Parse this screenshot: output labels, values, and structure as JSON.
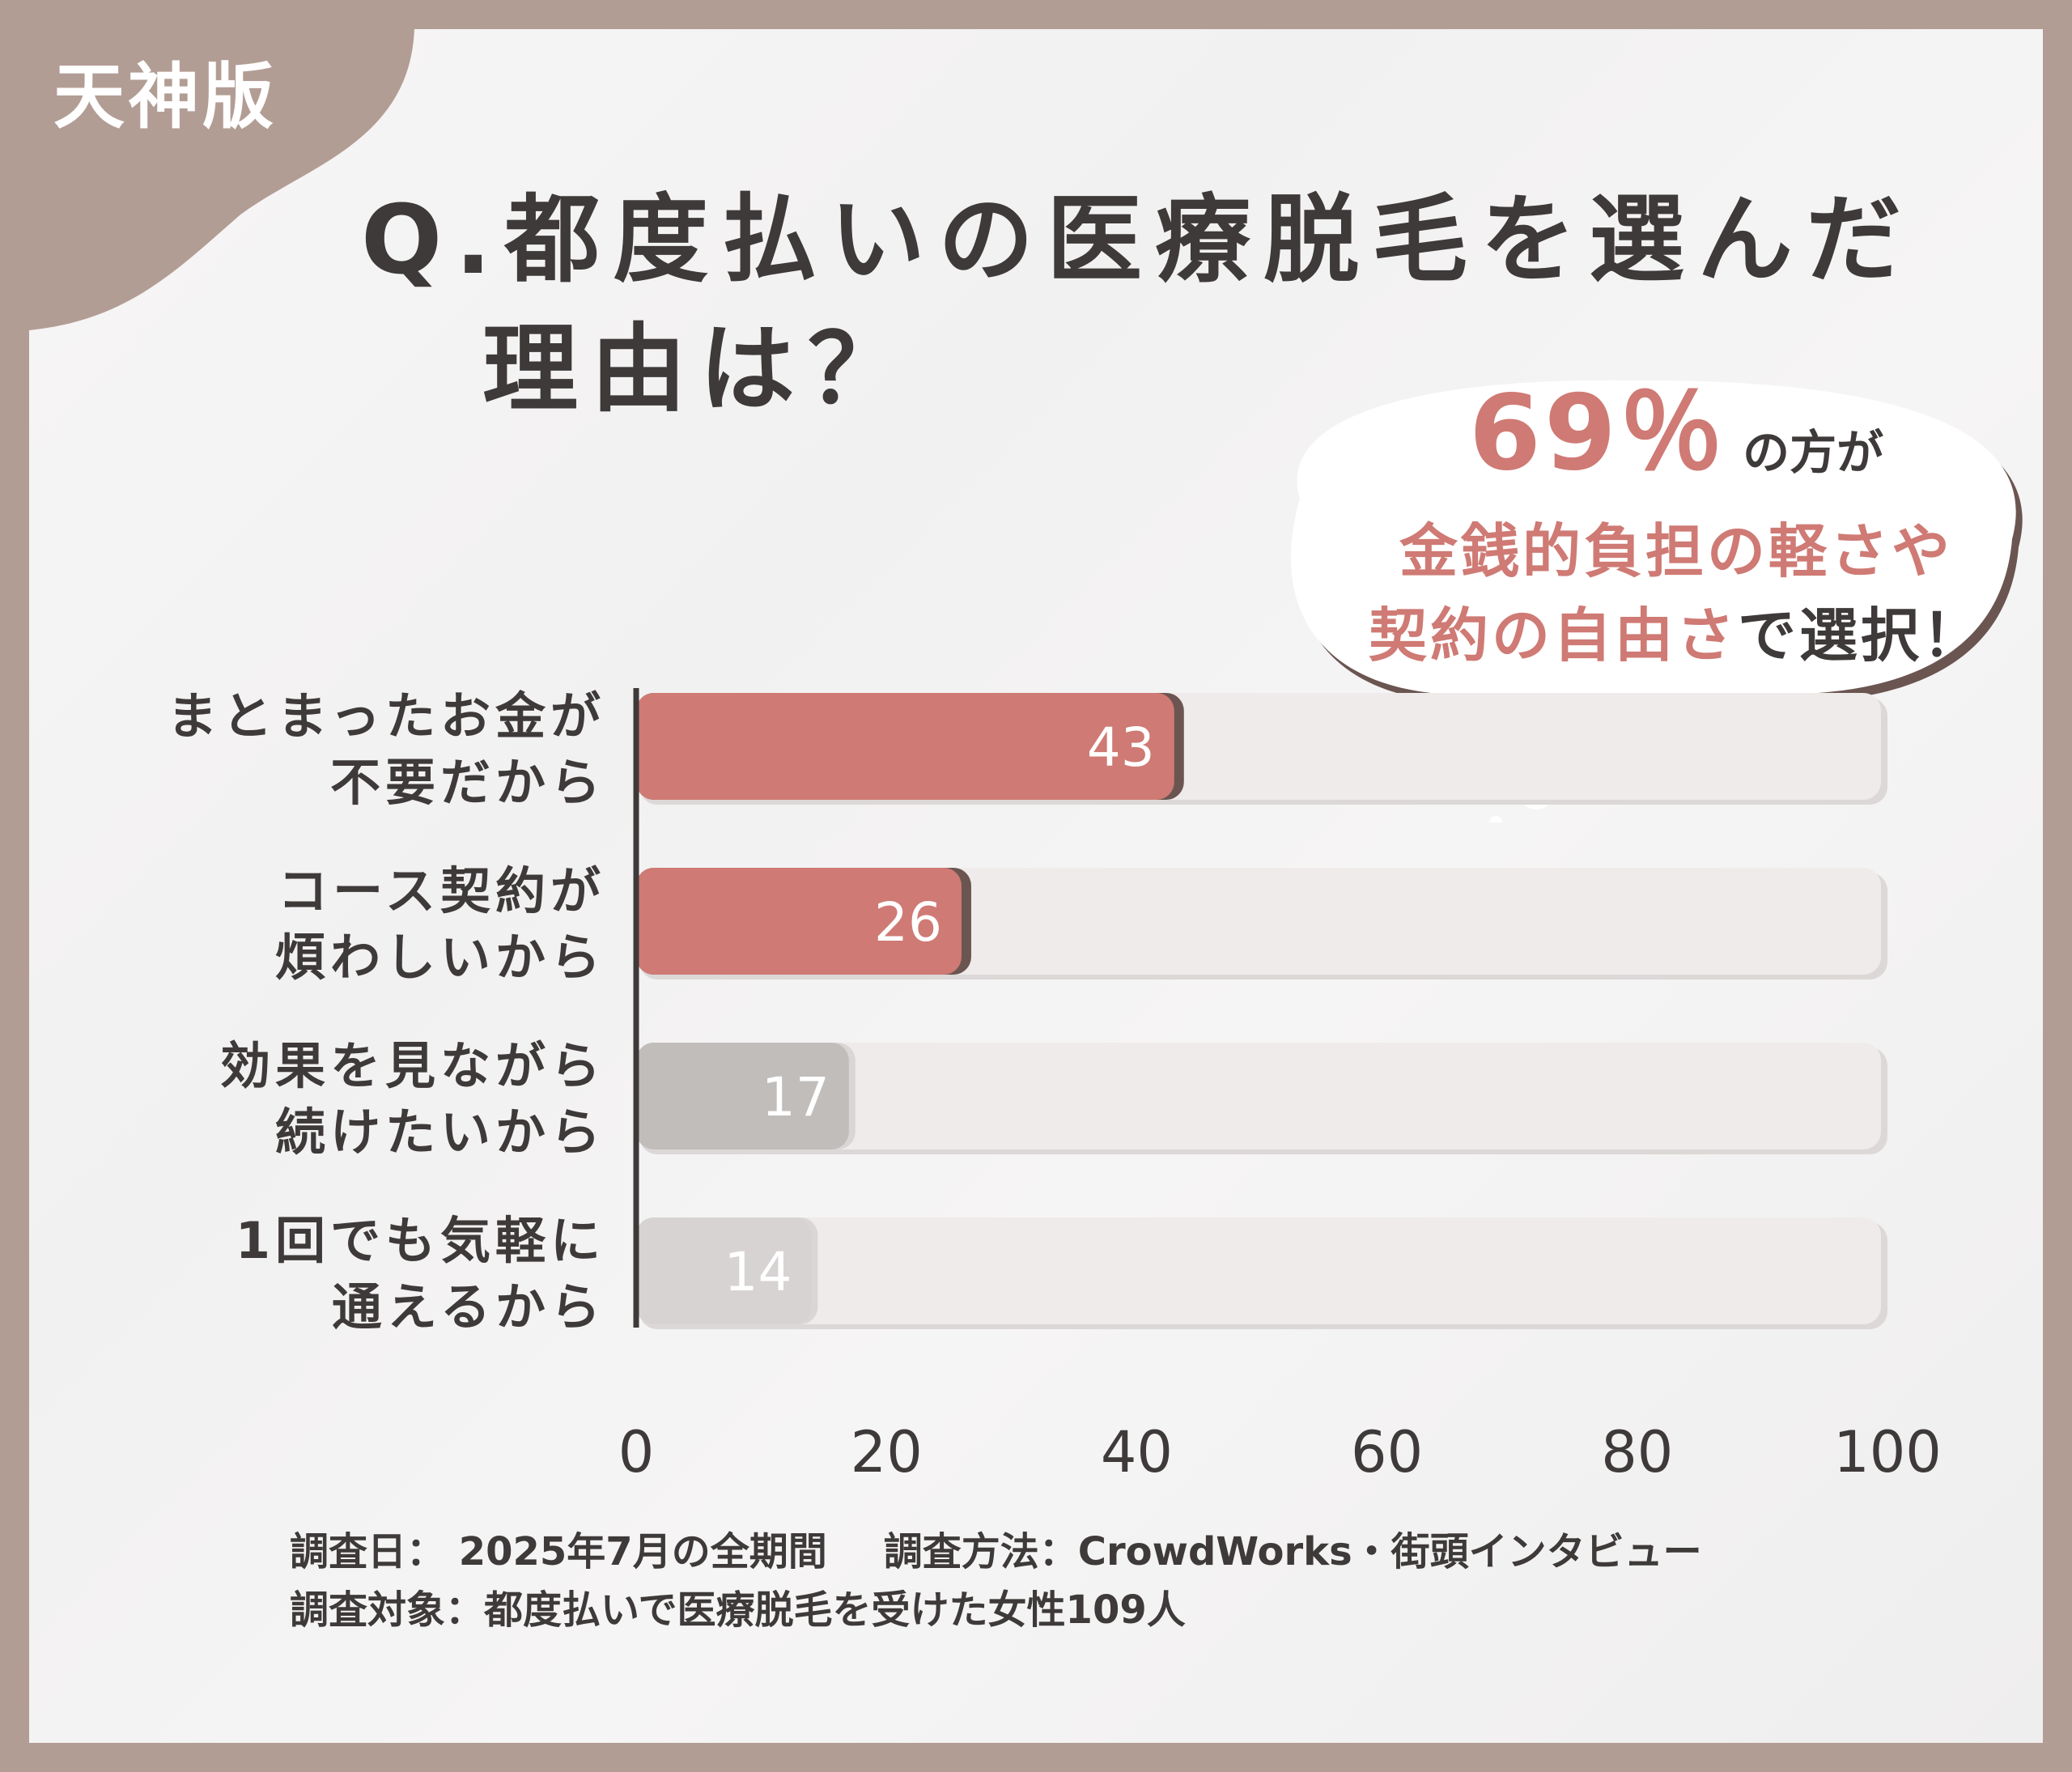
{
  "region_label": "天神版",
  "title": {
    "line1": "Q.都度払いの医療脱毛を選んだ",
    "line2": "理由は？"
  },
  "callout": {
    "percent": "69％",
    "line1_rest": "の方が",
    "line2": "金銭的負担の軽さや",
    "line3_accent": "契約の自由さ",
    "line3_rest": "で選択！"
  },
  "colors": {
    "bar_highlight": "#cf7a74",
    "bar_highlight_shadow": "#6b5551",
    "bar_gray_1": "#c0bdbb",
    "bar_gray_2": "#d6d3d2",
    "track": "#efebea",
    "frame": "#b29d94",
    "text": "#3e3a39"
  },
  "chart_data": {
    "type": "bar",
    "orientation": "horizontal",
    "categories": [
      [
        "まとまったお金が",
        "不要だから"
      ],
      [
        "コース契約が",
        "煩わしいから"
      ],
      [
        "効果を見ながら",
        "続けたいから"
      ],
      [
        "1回でも気軽に",
        "通えるから"
      ]
    ],
    "values": [
      43,
      26,
      17,
      14
    ],
    "value_labels": [
      "43",
      "26",
      "17",
      "14"
    ],
    "xlim": [
      0,
      100
    ],
    "xticks": [
      "0",
      "20",
      "40",
      "60",
      "80",
      "100"
    ],
    "grid": false
  },
  "footer": {
    "survey_date": "調査日： 2025年7月の全期間",
    "survey_method": "調査方法：CrowdWorks・街頭インタビュー",
    "survey_target": "調査対象：都度払いで医療脱毛を受けた女性109人"
  }
}
